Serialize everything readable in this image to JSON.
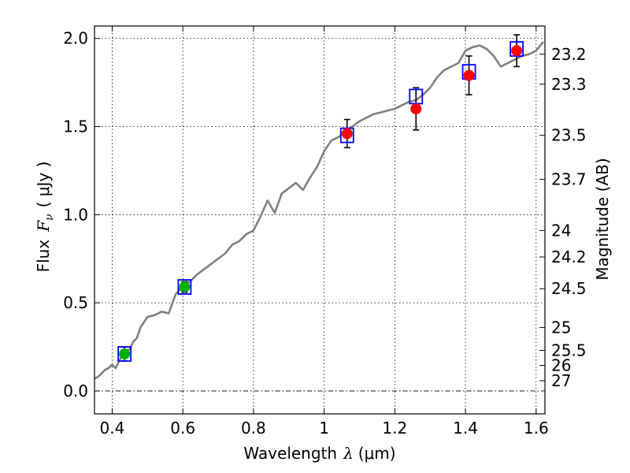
{
  "chart_data": {
    "type": "scatter",
    "xlabel_text": "Wavelength",
    "xlabel_symbol": "λ",
    "xlabel_unit": "(μm)",
    "ylabel_text": "Flux",
    "ylabel_symbol": "F",
    "ylabel_subscript": "ν",
    "ylabel_unit": "( μJy )",
    "y2label": "Magnitude (AB)",
    "xlim": [
      0.35,
      1.625
    ],
    "ylim": [
      -0.13,
      2.07
    ],
    "grid": true,
    "x_ticks": [
      {
        "value": 0.4,
        "label": "0.4"
      },
      {
        "value": 0.6,
        "label": "0.6"
      },
      {
        "value": 0.8,
        "label": "0.8"
      },
      {
        "value": 1.0,
        "label": "1"
      },
      {
        "value": 1.2,
        "label": "1.2"
      },
      {
        "value": 1.4,
        "label": "1.4"
      },
      {
        "value": 1.6,
        "label": "1.6"
      }
    ],
    "y_ticks": [
      {
        "value": 0.0,
        "label": "0.0"
      },
      {
        "value": 0.5,
        "label": "0.5"
      },
      {
        "value": 1.0,
        "label": "1.0"
      },
      {
        "value": 1.5,
        "label": "1.5"
      },
      {
        "value": 2.0,
        "label": "2.0"
      }
    ],
    "mag_ticks": [
      {
        "label": "23.2",
        "flux": 1.91
      },
      {
        "label": "23.3",
        "flux": 1.74
      },
      {
        "label": "23.5",
        "flux": 1.45
      },
      {
        "label": "23.7",
        "flux": 1.2
      },
      {
        "label": "24",
        "flux": 0.91
      },
      {
        "label": "24.2",
        "flux": 0.76
      },
      {
        "label": "24.5",
        "flux": 0.58
      },
      {
        "label": "25",
        "flux": 0.36
      },
      {
        "label": "25.5",
        "flux": 0.23
      },
      {
        "label": "26",
        "flux": 0.145
      },
      {
        "label": "27",
        "flux": 0.058
      }
    ],
    "model_line_color": "#808080",
    "model_spectrum": {
      "x": [
        0.35,
        0.36,
        0.37,
        0.38,
        0.39,
        0.4,
        0.41,
        0.42,
        0.43,
        0.44,
        0.45,
        0.46,
        0.47,
        0.48,
        0.5,
        0.52,
        0.54,
        0.56,
        0.58,
        0.59,
        0.6,
        0.62,
        0.64,
        0.66,
        0.68,
        0.7,
        0.72,
        0.74,
        0.76,
        0.78,
        0.8,
        0.82,
        0.84,
        0.86,
        0.88,
        0.9,
        0.92,
        0.94,
        0.96,
        0.98,
        1.0,
        1.02,
        1.04,
        1.06,
        1.08,
        1.1,
        1.12,
        1.14,
        1.16,
        1.18,
        1.2,
        1.22,
        1.24,
        1.26,
        1.28,
        1.3,
        1.32,
        1.34,
        1.36,
        1.38,
        1.4,
        1.42,
        1.44,
        1.46,
        1.48,
        1.5,
        1.52,
        1.54,
        1.56,
        1.58,
        1.6,
        1.62
      ],
      "y": [
        0.07,
        0.08,
        0.1,
        0.12,
        0.13,
        0.15,
        0.13,
        0.17,
        0.21,
        0.22,
        0.24,
        0.28,
        0.3,
        0.36,
        0.42,
        0.43,
        0.45,
        0.44,
        0.55,
        0.57,
        0.6,
        0.62,
        0.66,
        0.69,
        0.72,
        0.75,
        0.78,
        0.83,
        0.85,
        0.89,
        0.91,
        0.99,
        1.08,
        1.01,
        1.12,
        1.15,
        1.18,
        1.14,
        1.21,
        1.27,
        1.36,
        1.42,
        1.44,
        1.47,
        1.5,
        1.53,
        1.55,
        1.57,
        1.58,
        1.59,
        1.6,
        1.62,
        1.64,
        1.65,
        1.68,
        1.72,
        1.78,
        1.82,
        1.84,
        1.86,
        1.93,
        1.95,
        1.96,
        1.94,
        1.9,
        1.84,
        1.86,
        1.88,
        1.9,
        1.91,
        1.93,
        1.98
      ]
    },
    "series": [
      {
        "marker": "square",
        "color": "#0000ff",
        "x": [
          0.435,
          0.605,
          1.065,
          1.26,
          1.41,
          1.545
        ],
        "y": [
          0.21,
          0.59,
          1.45,
          1.67,
          1.81,
          1.94
        ]
      },
      {
        "marker": "circle",
        "color": "#00b000",
        "x": [
          0.435,
          0.605
        ],
        "y": [
          0.21,
          0.59
        ],
        "yerr": [
          0.04,
          0.03
        ]
      },
      {
        "marker": "circle",
        "color": "#ff0000",
        "x": [
          1.065,
          1.26,
          1.41,
          1.545
        ],
        "y": [
          1.46,
          1.6,
          1.79,
          1.93
        ],
        "yerr": [
          0.08,
          0.12,
          0.11,
          0.09
        ]
      }
    ]
  }
}
